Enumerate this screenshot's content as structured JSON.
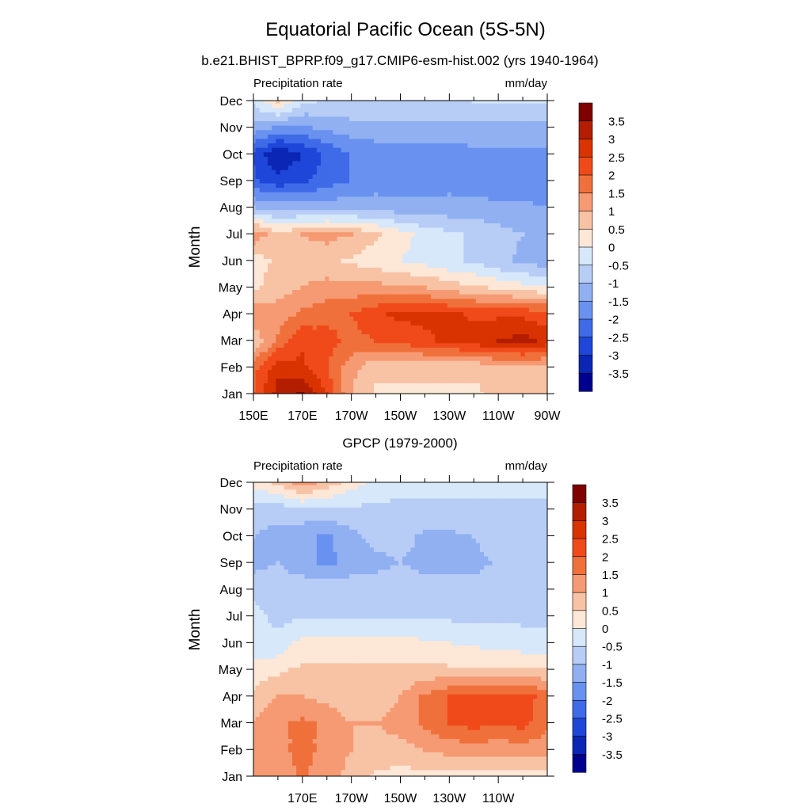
{
  "figure": {
    "title": "Equatorial Pacific Ocean (5S-5N)"
  },
  "colorbar": {
    "labels": [
      "3.5",
      "3",
      "2.5",
      "2",
      "1.5",
      "1",
      "0.5",
      "0",
      "-0.5",
      "-1",
      "-1.5",
      "-2",
      "-2.5",
      "-3",
      "-3.5"
    ],
    "colors": [
      "#7f0000",
      "#b31d00",
      "#d83300",
      "#f04a1a",
      "#f0703c",
      "#f59a72",
      "#f8c3a5",
      "#fde7d7",
      "#d6e8fa",
      "#b7cdf6",
      "#90b0f2",
      "#6992f0",
      "#3f6ae8",
      "#1e46d8",
      "#0b26b4",
      "#00008f"
    ]
  },
  "chart_data": [
    {
      "type": "heatmap",
      "title": "b.e21.BHIST_BPRP.f09_g17.CMIP6-esm-hist.002 (yrs 1940-1964)",
      "left_label": "Precipitation rate",
      "right_label": "mm/day",
      "ylabel": "Month",
      "xlabel": "",
      "yticks": [
        "Jan",
        "Feb",
        "Mar",
        "Apr",
        "May",
        "Jun",
        "Jul",
        "Aug",
        "Sep",
        "Oct",
        "Nov",
        "Dec"
      ],
      "xticks": [
        "150E",
        "170E",
        "170W",
        "150W",
        "130W",
        "110W",
        "90W"
      ],
      "levels": [
        -3.5,
        -3,
        -2.5,
        -2,
        -1.5,
        -1,
        -0.5,
        0,
        0.5,
        1,
        1.5,
        2,
        2.5,
        3,
        3.5
      ],
      "x_lon": [
        150,
        160,
        170,
        180,
        190,
        200,
        210,
        220,
        230,
        240,
        250,
        260,
        270
      ],
      "z": [
        [
          2.0,
          3.2,
          3.6,
          2.5,
          1.0,
          0.4,
          0.4,
          0.4,
          0.4,
          0.4,
          0.6,
          0.6,
          0.6
        ],
        [
          1.8,
          2.8,
          2.6,
          2.0,
          1.2,
          0.6,
          0.6,
          0.6,
          0.6,
          0.6,
          0.8,
          0.8,
          0.8
        ],
        [
          0.6,
          1.6,
          2.4,
          2.2,
          1.8,
          2.0,
          2.2,
          2.4,
          2.6,
          2.8,
          3.0,
          3.2,
          2.8
        ],
        [
          1.4,
          1.2,
          1.6,
          1.8,
          2.0,
          2.4,
          2.6,
          2.6,
          2.6,
          2.4,
          2.4,
          2.4,
          2.2
        ],
        [
          0.4,
          0.8,
          1.0,
          1.2,
          1.2,
          1.2,
          1.1,
          1.0,
          0.8,
          0.6,
          0.4,
          0.2,
          0.1
        ],
        [
          0.2,
          0.6,
          0.8,
          0.6,
          0.4,
          0.2,
          0.0,
          -0.2,
          -0.4,
          -0.6,
          -0.9,
          -1.1,
          -1.3
        ],
        [
          1.4,
          0.6,
          1.0,
          1.2,
          1.0,
          0.6,
          0.2,
          -0.2,
          -0.4,
          -0.6,
          -0.8,
          -1.0,
          -1.2
        ],
        [
          -1.0,
          -1.2,
          -1.2,
          -1.2,
          -1.2,
          -1.2,
          -1.3,
          -1.3,
          -1.3,
          -1.3,
          -1.4,
          -1.4,
          -1.5
        ],
        [
          -2.4,
          -2.8,
          -2.6,
          -2.2,
          -2.0,
          -1.8,
          -1.8,
          -1.8,
          -1.7,
          -1.8,
          -1.8,
          -1.8,
          -1.8
        ],
        [
          -2.6,
          -3.5,
          -3.0,
          -2.4,
          -2.0,
          -1.8,
          -1.8,
          -1.8,
          -1.8,
          -1.6,
          -1.6,
          -1.6,
          -1.6
        ],
        [
          -1.2,
          -1.6,
          -1.6,
          -1.4,
          -1.2,
          -1.2,
          -1.2,
          -1.2,
          -1.2,
          -1.2,
          -1.2,
          -1.2,
          -1.2
        ],
        [
          -0.4,
          0.6,
          -0.4,
          -0.6,
          -0.6,
          -0.6,
          -0.6,
          -0.6,
          -0.6,
          -0.5,
          -0.5,
          -0.5,
          -0.4
        ]
      ]
    },
    {
      "type": "heatmap",
      "title": "GPCP (1979-2000)",
      "left_label": "Precipitation rate",
      "right_label": "mm/day",
      "ylabel": "Month",
      "xlabel": "",
      "yticks": [
        "Jan",
        "Feb",
        "Mar",
        "Apr",
        "May",
        "Jun",
        "Jul",
        "Aug",
        "Sep",
        "Oct",
        "Nov",
        "Dec"
      ],
      "xticks": [
        "170E",
        "170W",
        "150W",
        "130W",
        "110W"
      ],
      "levels": [
        -3.5,
        -3,
        -2.5,
        -2,
        -1.5,
        -1,
        -0.5,
        0,
        0.5,
        1,
        1.5,
        2,
        2.5,
        3,
        3.5
      ],
      "x_lon": [
        150,
        160,
        170,
        180,
        190,
        200,
        210,
        220,
        230,
        240,
        250,
        260,
        270
      ],
      "z": [
        [
          1.2,
          1.2,
          1.6,
          1.2,
          0.8,
          0.4,
          0.3,
          0.3,
          0.3,
          0.3,
          0.3,
          0.3,
          0.3
        ],
        [
          1.3,
          1.4,
          1.6,
          1.4,
          1.0,
          0.8,
          0.8,
          1.0,
          1.2,
          1.2,
          1.2,
          1.2,
          1.2
        ],
        [
          1.0,
          1.4,
          1.6,
          1.4,
          1.0,
          1.0,
          1.2,
          1.6,
          2.0,
          2.2,
          2.0,
          2.2,
          1.6
        ],
        [
          0.6,
          1.0,
          1.0,
          0.8,
          0.6,
          0.6,
          1.0,
          1.6,
          2.0,
          2.2,
          2.0,
          2.2,
          1.8
        ],
        [
          0.2,
          0.4,
          0.6,
          0.6,
          0.6,
          0.6,
          0.6,
          0.6,
          0.6,
          0.6,
          0.6,
          0.6,
          0.5
        ],
        [
          -0.4,
          -0.4,
          0.2,
          0.2,
          0.2,
          0.2,
          0.2,
          0.1,
          0.0,
          -0.1,
          -0.2,
          -0.3,
          -0.4
        ],
        [
          -0.4,
          -0.6,
          -0.6,
          -0.6,
          -0.6,
          -0.6,
          -0.6,
          -0.6,
          -0.6,
          -0.6,
          -0.6,
          -0.6,
          -0.6
        ],
        [
          -0.6,
          -0.6,
          -0.6,
          -0.6,
          -0.6,
          -0.6,
          -0.6,
          -0.8,
          -0.8,
          -0.8,
          -0.6,
          -0.6,
          -0.6
        ],
        [
          -1.2,
          -1.0,
          -1.4,
          -1.6,
          -1.4,
          -1.2,
          -1.0,
          -1.2,
          -1.2,
          -1.2,
          -0.9,
          -0.9,
          -1.0
        ],
        [
          -1.0,
          -1.2,
          -1.4,
          -1.6,
          -1.2,
          -0.8,
          -0.8,
          -1.1,
          -1.1,
          -1.0,
          -0.6,
          -0.9,
          -0.8
        ],
        [
          -0.8,
          -0.8,
          -0.6,
          -0.6,
          -0.6,
          -0.6,
          -0.6,
          -0.6,
          -0.6,
          -0.6,
          -0.6,
          -0.6,
          -0.6
        ],
        [
          0.2,
          0.6,
          1.2,
          0.8,
          0.2,
          -0.2,
          -0.4,
          -0.4,
          -0.4,
          -0.4,
          -0.4,
          -0.4,
          -0.4
        ]
      ]
    }
  ]
}
